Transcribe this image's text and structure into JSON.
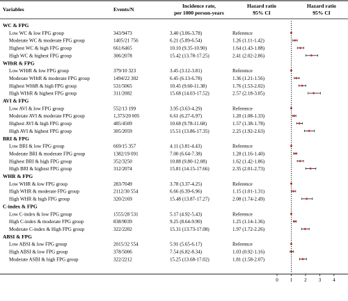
{
  "headers": {
    "variables": "Variables",
    "events": "Events/N",
    "incidence_1": "Incidence rate,",
    "incidence_2": "per 1000 person-years",
    "hr_1": "Hazard ratio",
    "hr_2": "95% CI",
    "plot_1": "Hazard ratio",
    "plot_2": "95% CI"
  },
  "chart_data": {
    "type": "forest",
    "x_ticks": [
      0,
      1,
      2,
      3,
      4
    ],
    "xlim": [
      0,
      4.2
    ],
    "reference_line": 1,
    "colors": {
      "point": "#d32f2f",
      "line": "#2b2b2b",
      "reference": "#000000"
    },
    "groups": [
      {
        "label": "WC & FPG",
        "rows": [
          {
            "label": "Low WC & low FPG group",
            "events": "343/9473",
            "incidence": "3.40 (3.06-3.78)",
            "hr_text": "Reference",
            "hr": 1.0,
            "lo": 1.0,
            "hi": 1.0
          },
          {
            "label": "Moderate WC & moderate FPG group",
            "events": "1405/21 756",
            "incidence": "6.21 (5.89-6.54)",
            "hr_text": "1.26 (1.11-1.42)",
            "hr": 1.26,
            "lo": 1.11,
            "hi": 1.42
          },
          {
            "label": "Highest WC & high FPG group",
            "events": "661/6465",
            "incidence": "10.10 (9.35-10.90)",
            "hr_text": "1.64 (1.43-1.88)",
            "hr": 1.64,
            "lo": 1.43,
            "hi": 1.88
          },
          {
            "label": "High WC & highest FPG group",
            "events": "306/2078",
            "incidence": "15.42 (13.78-17.25)",
            "hr_text": "2.41 (2.02-2.86)",
            "hr": 2.41,
            "lo": 2.02,
            "hi": 2.86
          }
        ]
      },
      {
        "label": "WHtR & FPG",
        "rows": [
          {
            "label": "Low WHtR & low FPG group",
            "events": "379/10 323",
            "incidence": "3.45 (3.12-3.81)",
            "hr_text": "Reference",
            "hr": 1.0,
            "lo": 1.0,
            "hi": 1.0
          },
          {
            "label": "Moderate WHtR & moderate FPG group",
            "events": "1494/22 302",
            "incidence": "6.45 (6.13-6.78)",
            "hr_text": "1.36 (1.21-1.56)",
            "hr": 1.36,
            "lo": 1.21,
            "hi": 1.56
          },
          {
            "label": "Highest WHtR & high FPG group",
            "events": "531/5065",
            "incidence": "10.45 (9.60-11.38)",
            "hr_text": "1.76 (1.53-2.02)",
            "hr": 1.76,
            "lo": 1.53,
            "hi": 2.02
          },
          {
            "label": "High WHtR & highest FPG group",
            "events": "311/2082",
            "incidence": "15.68 (14.03-17.52)",
            "hr_text": "2.57 (2.18-3.05)",
            "hr": 2.57,
            "lo": 2.18,
            "hi": 3.05
          }
        ]
      },
      {
        "label": "AVI & FPG",
        "rows": [
          {
            "label": "Low AVI & low FPG group",
            "events": "552/13 199",
            "incidence": "3.95 (3.63-4.29)",
            "hr_text": "Reference",
            "hr": 1.0,
            "lo": 1.0,
            "hi": 1.0
          },
          {
            "label": "Moderate AVI & moderate FPG group",
            "events": "1,373/20 005",
            "incidence": "6.61 (6.27-6.97)",
            "hr_text": "1.20 (1.08-1.33)",
            "hr": 1.2,
            "lo": 1.08,
            "hi": 1.33
          },
          {
            "label": "Highest AVI & high FPG group",
            "events": "485/4509",
            "incidence": "10.68 (9.78-11.68)",
            "hr_text": "1.57 (1.38-1.78)",
            "hr": 1.57,
            "lo": 1.38,
            "hi": 1.78
          },
          {
            "label": "High AVI & highest FPG group",
            "events": "305/2059",
            "incidence": "15.51 (13.86-17.35)",
            "hr_text": "2.25 (1.92-2.63)",
            "hr": 2.25,
            "lo": 1.92,
            "hi": 2.63
          }
        ]
      },
      {
        "label": "BRI & FPG",
        "rows": [
          {
            "label": "Low BRI & low FPG group",
            "events": "669/15 357",
            "incidence": "4.11 (3.81-4.43)",
            "hr_text": "Reference",
            "hr": 1.0,
            "lo": 1.0,
            "hi": 1.0
          },
          {
            "label": "Moderate BRI & moderate FPG group",
            "events": "1382/19 091",
            "incidence": "7.00 (6.64-7.38)",
            "hr_text": "1.28 (1.16-1.40)",
            "hr": 1.28,
            "lo": 1.16,
            "hi": 1.4
          },
          {
            "label": "Highest BRI & high FPG group",
            "events": "352/3250",
            "incidence": "10.88 (9.80-12.08)",
            "hr_text": "1.62 (1.42-1.86)",
            "hr": 1.62,
            "lo": 1.42,
            "hi": 1.86
          },
          {
            "label": "High BRI & highest FPG group",
            "events": "312/2074",
            "incidence": "15.81 (14.15-17.66)",
            "hr_text": "2.35 (2.01-2.73)",
            "hr": 2.35,
            "lo": 2.01,
            "hi": 2.73
          }
        ]
      },
      {
        "label": "WHR & FPG",
        "rows": [
          {
            "label": "Low WHR & low FPG group",
            "events": "283/7049",
            "incidence": "3.78 (3.37-4.25)",
            "hr_text": "Reference",
            "hr": 1.0,
            "lo": 1.0,
            "hi": 1.0
          },
          {
            "label": "High WHR & moderate FPG group",
            "events": "2112/30 554",
            "incidence": "6.66 (6.39-6.96)",
            "hr_text": "1.15 (1.01-1.31)",
            "hr": 1.15,
            "lo": 1.01,
            "hi": 1.31
          },
          {
            "label": "High WHR & high FPG group",
            "events": "320/2169",
            "incidence": "15.48 (13.87-17.27)",
            "hr_text": "2.08 (1.74-2.49)",
            "hr": 2.08,
            "lo": 1.74,
            "hi": 2.49
          }
        ]
      },
      {
        "label": "C-index & FPG",
        "rows": [
          {
            "label": "Low C-index & low FPG group",
            "events": "1555/28 531",
            "incidence": "5.17 (4.92-5.43)",
            "hr_text": "Reference",
            "hr": 1.0,
            "lo": 1.0,
            "hi": 1.0
          },
          {
            "label": "High C-index & moderate FPG group",
            "events": "838/9039",
            "incidence": "9.25 (8.64-9.90)",
            "hr_text": "1.25 (1.14-1.36)",
            "hr": 1.25,
            "lo": 1.14,
            "hi": 1.36
          },
          {
            "label": "Moderate C-index & High FPG group",
            "events": "322/2202",
            "incidence": "15.31 (13.73-17.08)",
            "hr_text": "1.97 (1.72-2.26)",
            "hr": 1.97,
            "lo": 1.72,
            "hi": 2.26
          }
        ]
      },
      {
        "label": "ABSI & FPG",
        "rows": [
          {
            "label": "Low ABSI & low FPG group",
            "events": "2015/32 554",
            "incidence": "5.91 (5.65-6.17)",
            "hr_text": "Reference",
            "hr": 1.0,
            "lo": 1.0,
            "hi": 1.0
          },
          {
            "label": "High ABSI & low FPG group",
            "events": "378/5006",
            "incidence": "7.54 (6.82-8.34)",
            "hr_text": "1.03 (0.92-1.16)",
            "hr": 1.03,
            "lo": 0.92,
            "hi": 1.16
          },
          {
            "label": "Moderate ASBI & high FPG group",
            "events": "322/2212",
            "incidence": "15.25 (13.68-17.02)",
            "hr_text": "1.81 (1.58-2.07)",
            "hr": 1.81,
            "lo": 1.58,
            "hi": 2.07
          }
        ]
      }
    ]
  }
}
